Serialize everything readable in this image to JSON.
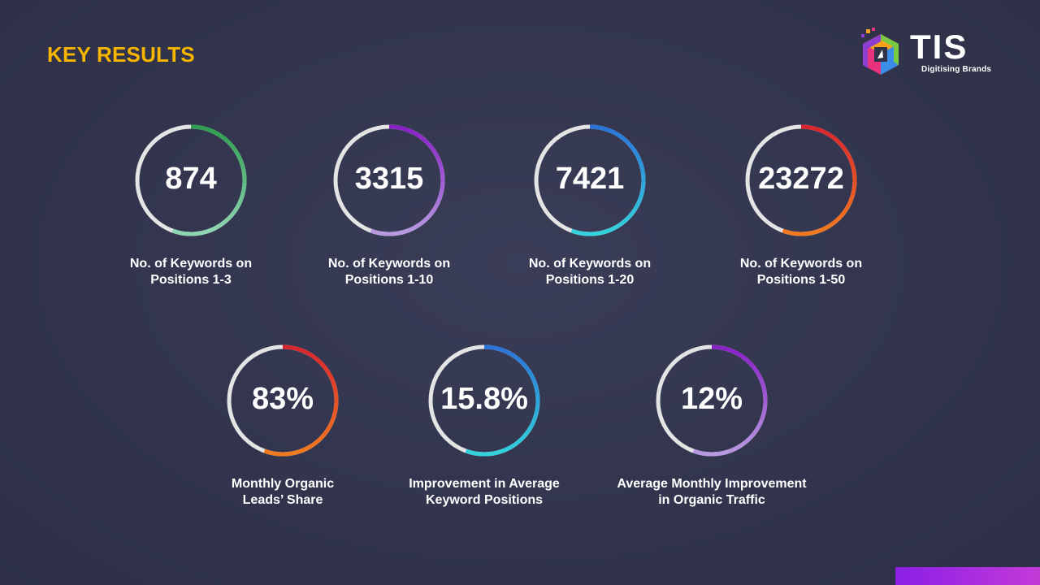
{
  "header": {
    "title": "KEY RESULTS"
  },
  "logo": {
    "word": "TIS",
    "tagline": "Digitising Brands",
    "icon": "cube-logo-icon"
  },
  "colors": {
    "title": "#f7b500",
    "track": "#e4e4e4",
    "green": [
      "#2e9e4f",
      "#8fd6b2"
    ],
    "purple": [
      "#8a1fc8",
      "#b89ae0"
    ],
    "blue": [
      "#2a73d9",
      "#33d2dc"
    ],
    "red": [
      "#d9252e",
      "#f07a1e"
    ]
  },
  "metrics": [
    {
      "value": "874",
      "label_line1": "No. of Keywords on",
      "label_line2": "Positions 1-3",
      "ring": "green"
    },
    {
      "value": "3315",
      "label_line1": "No. of Keywords on",
      "label_line2": "Positions 1-10",
      "ring": "purple"
    },
    {
      "value": "7421",
      "label_line1": "No. of Keywords on",
      "label_line2": "Positions 1-20",
      "ring": "blue"
    },
    {
      "value": "23272",
      "label_line1": "No. of Keywords on",
      "label_line2": "Positions 1-50",
      "ring": "red"
    },
    {
      "value": "83%",
      "label_line1": "Monthly Organic",
      "label_line2": "Leads’ Share",
      "ring": "red"
    },
    {
      "value": "15.8%",
      "label_line1": "Improvement in Average",
      "label_line2": "Keyword Positions",
      "ring": "blue"
    },
    {
      "value": "12%",
      "label_line1": "Average Monthly Improvement",
      "label_line2": "in Organic Traffic",
      "ring": "purple"
    }
  ]
}
